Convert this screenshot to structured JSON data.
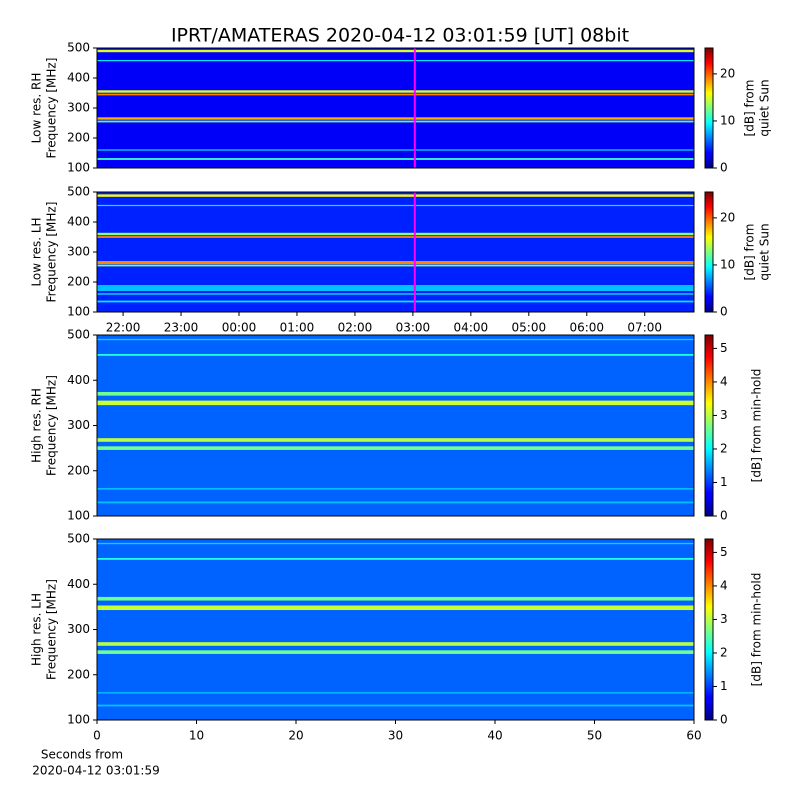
{
  "title": "IPRT/AMATERAS 2020-04-12 03:01:59 [UT]   08bit",
  "chart_data": [
    {
      "type": "heatmap",
      "ylabel": [
        "Low res. RH",
        "Frequency [MHz]"
      ],
      "xlim": [
        21.55,
        31.85
      ],
      "ylim": [
        100,
        500
      ],
      "yticks": [
        100,
        200,
        300,
        400,
        500
      ],
      "marker_x": 27.033,
      "marker_color": "#ff00ff",
      "clim": [
        0,
        25.5
      ],
      "cticks": [
        0,
        10,
        20
      ],
      "colorbar_label": [
        "[dB] from",
        "quiet Sun"
      ],
      "background": 3,
      "bands": [
        {
          "freq": 490,
          "level": 15,
          "width": 8
        },
        {
          "freq": 458,
          "level": 9,
          "width": 4
        },
        {
          "freq": 355,
          "level": 15,
          "width": 8
        },
        {
          "freq": 345,
          "level": 19,
          "width": 6
        },
        {
          "freq": 265,
          "level": 18,
          "width": 8
        },
        {
          "freq": 255,
          "level": 12,
          "width": 6
        },
        {
          "freq": 160,
          "level": 9,
          "width": 4
        },
        {
          "freq": 130,
          "level": 11,
          "width": 6
        }
      ]
    },
    {
      "type": "heatmap",
      "ylabel": [
        "Low res. LH",
        "Frequency [MHz]"
      ],
      "xlim": [
        21.55,
        31.85
      ],
      "ylim": [
        100,
        500
      ],
      "yticks": [
        100,
        200,
        300,
        400,
        500
      ],
      "xticks": [
        {
          "value": 22,
          "label": "22:00"
        },
        {
          "value": 23,
          "label": "23:00"
        },
        {
          "value": 24,
          "label": "00:00"
        },
        {
          "value": 25,
          "label": "01:00"
        },
        {
          "value": 26,
          "label": "02:00"
        },
        {
          "value": 27,
          "label": "03:00"
        },
        {
          "value": 28,
          "label": "04:00"
        },
        {
          "value": 29,
          "label": "05:00"
        },
        {
          "value": 30,
          "label": "06:00"
        },
        {
          "value": 31,
          "label": "07:00"
        }
      ],
      "marker_x": 27.033,
      "marker_color": "#ff00ff",
      "clim": [
        0,
        25.5
      ],
      "cticks": [
        0,
        10,
        20
      ],
      "colorbar_label": [
        "[dB] from",
        "quiet Sun"
      ],
      "background": 4,
      "bands": [
        {
          "freq": 488,
          "level": 16,
          "width": 8
        },
        {
          "freq": 455,
          "level": 9,
          "width": 4
        },
        {
          "freq": 360,
          "level": 13,
          "width": 8
        },
        {
          "freq": 350,
          "level": 19,
          "width": 6
        },
        {
          "freq": 265,
          "level": 19,
          "width": 10
        },
        {
          "freq": 255,
          "level": 13,
          "width": 6
        },
        {
          "freq": 180,
          "level": 8,
          "width": 20
        },
        {
          "freq": 160,
          "level": 10,
          "width": 4
        },
        {
          "freq": 135,
          "level": 9,
          "width": 6
        }
      ]
    },
    {
      "type": "heatmap",
      "ylabel": [
        "High res. RH",
        "Frequency [MHz]"
      ],
      "xlim": [
        0,
        60
      ],
      "ylim": [
        100,
        500
      ],
      "yticks": [
        100,
        200,
        300,
        400,
        500
      ],
      "clim": [
        0,
        5.4
      ],
      "cticks": [
        0,
        1,
        2,
        3,
        4,
        5
      ],
      "colorbar_label": [
        "[dB] from min-hold"
      ],
      "background": 1.2,
      "bands": [
        {
          "freq": 490,
          "level": 1.8,
          "width": 3
        },
        {
          "freq": 456,
          "level": 2.2,
          "width": 4
        },
        {
          "freq": 370,
          "level": 2.6,
          "width": 8
        },
        {
          "freq": 350,
          "level": 3.1,
          "width": 10
        },
        {
          "freq": 268,
          "level": 3,
          "width": 8
        },
        {
          "freq": 250,
          "level": 2.6,
          "width": 8
        },
        {
          "freq": 160,
          "level": 1.8,
          "width": 3
        },
        {
          "freq": 130,
          "level": 1.7,
          "width": 4
        }
      ]
    },
    {
      "type": "heatmap",
      "ylabel": [
        "High res. LH",
        "Frequency [MHz]"
      ],
      "xlim": [
        0,
        60
      ],
      "ylim": [
        100,
        500
      ],
      "yticks": [
        100,
        200,
        300,
        400,
        500
      ],
      "xticks": [
        0,
        10,
        20,
        30,
        40,
        50,
        60
      ],
      "xlabel": [
        "Seconds from",
        "2020-04-12 03:01:59"
      ],
      "clim": [
        0,
        5.4
      ],
      "cticks": [
        0,
        1,
        2,
        3,
        4,
        5
      ],
      "colorbar_label": [
        "[dB] from min-hold"
      ],
      "background": 1.2,
      "bands": [
        {
          "freq": 490,
          "level": 1.8,
          "width": 3
        },
        {
          "freq": 456,
          "level": 2.2,
          "width": 4
        },
        {
          "freq": 368,
          "level": 2.6,
          "width": 8
        },
        {
          "freq": 348,
          "level": 3.1,
          "width": 10
        },
        {
          "freq": 268,
          "level": 3,
          "width": 8
        },
        {
          "freq": 250,
          "level": 2.6,
          "width": 8
        },
        {
          "freq": 160,
          "level": 1.7,
          "width": 3
        },
        {
          "freq": 132,
          "level": 1.7,
          "width": 4
        }
      ]
    }
  ]
}
